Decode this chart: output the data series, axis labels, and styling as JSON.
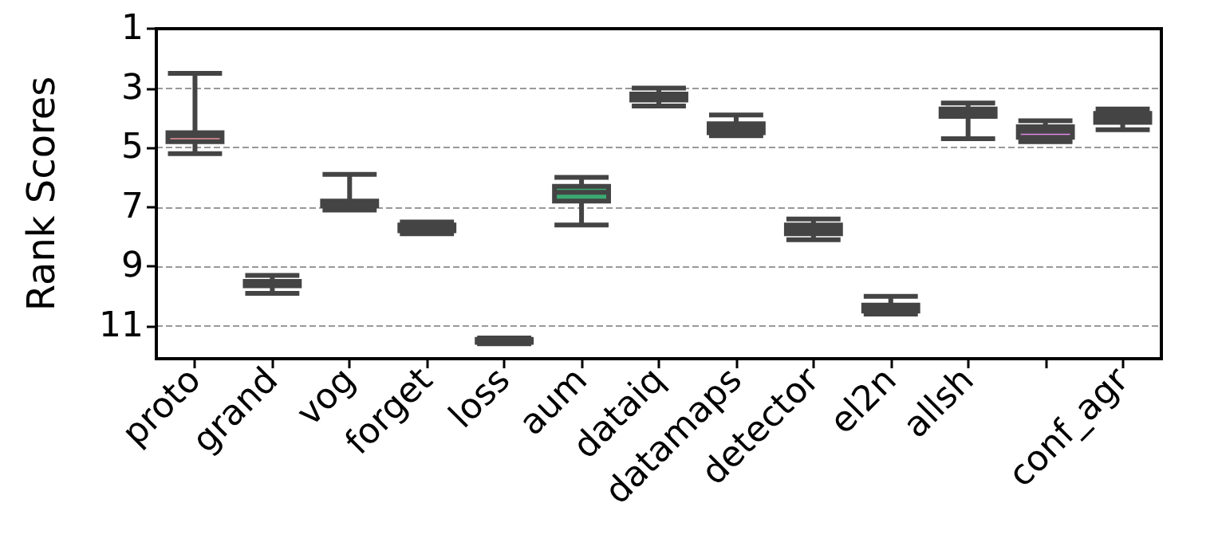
{
  "chart_data": {
    "type": "box",
    "ylabel": "Rank Scores",
    "categories": [
      "proto",
      "grand",
      "vog",
      "forget",
      "loss",
      "aum",
      "dataiq",
      "datamaps",
      "detector",
      "el2n",
      "allsh",
      null,
      "conf_agr"
    ],
    "boxes": [
      {
        "low": 2.5,
        "q1": 4.5,
        "median": 4.6,
        "q3": 4.8,
        "high": 5.2
      },
      {
        "low": 9.3,
        "q1": 9.5,
        "median": 9.55,
        "q3": 9.65,
        "high": 9.9
      },
      {
        "low": 5.9,
        "q1": 6.8,
        "median": 6.85,
        "q3": 6.95,
        "high": 7.1
      },
      {
        "low": 7.5,
        "q1": 7.6,
        "median": 7.7,
        "q3": 7.8,
        "high": 7.9
      },
      {
        "low": 11.4,
        "q1": 11.45,
        "median": 11.5,
        "q3": 11.55,
        "high": 11.6
      },
      {
        "low": 6.0,
        "q1": 6.3,
        "median": 6.5,
        "q3": 6.8,
        "high": 7.6
      },
      {
        "low": 3.0,
        "q1": 3.2,
        "median": 3.3,
        "q3": 3.4,
        "high": 3.6
      },
      {
        "low": 3.9,
        "q1": 4.2,
        "median": 4.35,
        "q3": 4.5,
        "high": 4.6
      },
      {
        "low": 7.4,
        "q1": 7.6,
        "median": 7.75,
        "q3": 7.9,
        "high": 8.1
      },
      {
        "low": 10.0,
        "q1": 10.3,
        "median": 10.4,
        "q3": 10.5,
        "high": 10.6
      },
      {
        "low": 3.5,
        "q1": 3.7,
        "median": 3.8,
        "q3": 3.95,
        "high": 4.7
      },
      {
        "low": 4.1,
        "q1": 4.3,
        "median": 4.45,
        "q3": 4.65,
        "high": 4.8
      },
      {
        "low": 3.7,
        "q1": 3.85,
        "median": 4.0,
        "q3": 4.15,
        "high": 4.4
      }
    ],
    "colors": [
      "#e8909c",
      "#d9823b",
      "#b8913a",
      "#a39a3a",
      "#7a9a3a",
      "#3aaa72",
      "#3aa591",
      "#3a9e9a",
      "#4aa8c8",
      "#7aa0e0",
      "#b89ae8",
      "#e088e8",
      "#e890c0"
    ],
    "ylim": [
      12.1,
      1
    ],
    "yticks": [
      1,
      3,
      5,
      7,
      9,
      11
    ],
    "grid": "y"
  }
}
